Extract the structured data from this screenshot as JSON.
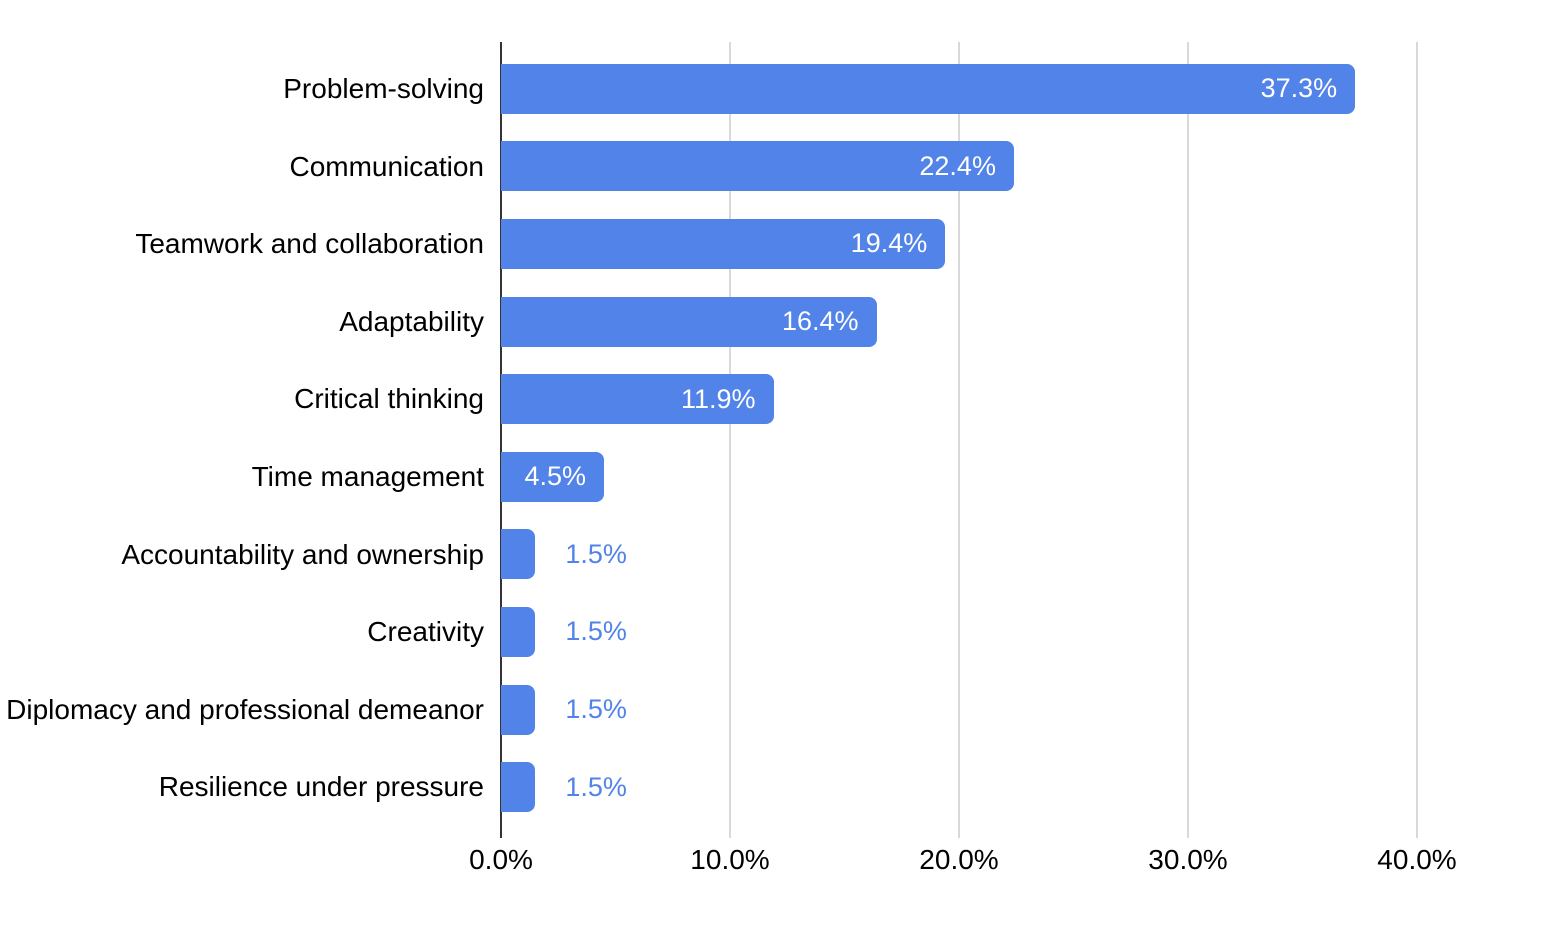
{
  "chart_data": {
    "type": "bar",
    "orientation": "horizontal",
    "title": "",
    "xlabel": "",
    "ylabel": "",
    "categories": [
      "Problem-solving",
      "Communication",
      "Teamwork and collaboration",
      "Adaptability",
      "Critical thinking",
      "Time management",
      "Accountability and ownership",
      "Creativity",
      "Diplomacy and professional demeanor",
      "Resilience under pressure"
    ],
    "values": [
      37.3,
      22.4,
      19.4,
      16.4,
      11.9,
      4.5,
      1.5,
      1.5,
      1.5,
      1.5
    ],
    "value_labels": [
      "37.3%",
      "22.4%",
      "19.4%",
      "16.4%",
      "11.9%",
      "4.5%",
      "1.5%",
      "1.5%",
      "1.5%",
      "1.5%"
    ],
    "xlim": [
      0,
      46
    ],
    "x_ticks": [
      0,
      10,
      20,
      30,
      40
    ],
    "x_tick_labels": [
      "0.0%",
      "10.0%",
      "20.0%",
      "30.0%",
      "40.0%"
    ],
    "grid": "vertical-only",
    "legend": "none",
    "colors": {
      "bar": "#5283e8",
      "value_label_inside": "#ffffff",
      "value_label_outside": "#5283e8",
      "gridline": "#d9d9d9",
      "axis_line": "#333333",
      "text": "#000000",
      "background": "#ffffff"
    }
  }
}
